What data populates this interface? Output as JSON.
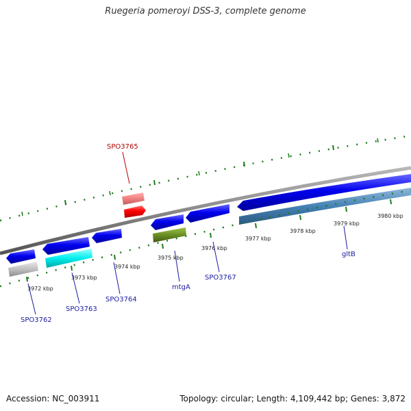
{
  "title": "Ruegeria pomeroyi DSS-3, complete genome",
  "footer": {
    "accession": "Accession: NC_003911",
    "summary": "Topology: circular; Length: 4,109,442 bp; Genes: 3,872"
  },
  "colors": {
    "backbone": "#8a8a8a",
    "tick": "#1a7a1a",
    "label_forward": "#b00000",
    "label_reverse": "#1a1aa0"
  },
  "tick_labels": [
    "3972 kbp",
    "3973 kbp",
    "3974 kbp",
    "3975 kbp",
    "3976 kbp",
    "3977 kbp",
    "3978 kbp",
    "3979 kbp",
    "3980 kbp"
  ],
  "genes": [
    {
      "name": "SPO3762",
      "color": "#0000ee",
      "ring": "cds"
    },
    {
      "name": "SPO3762",
      "color": "#c0c0c0",
      "ring": "category"
    },
    {
      "name": "SPO3763",
      "color": "#0000ee",
      "ring": "cds"
    },
    {
      "name": "SPO3763",
      "color": "#00eeee",
      "ring": "category"
    },
    {
      "name": "SPO3764",
      "color": "#0000ee",
      "ring": "cds"
    },
    {
      "name": "SPO3765",
      "color": "#ff0000",
      "ring": "cds"
    },
    {
      "name": "SPO3765",
      "color": "#f08080",
      "ring": "category"
    },
    {
      "name": "mtgA",
      "color": "#0000ee",
      "ring": "cds"
    },
    {
      "name": "mtgA",
      "color": "#6b8e23",
      "ring": "category"
    },
    {
      "name": "SPO3767",
      "color": "#0000ee",
      "ring": "cds"
    },
    {
      "name": "gltB",
      "color": "#0000ee",
      "ring": "cds"
    },
    {
      "name": "gltB",
      "color": "#4682b4",
      "ring": "category"
    }
  ],
  "gene_labels": [
    {
      "text": "SPO3765",
      "strand": "forward"
    },
    {
      "text": "SPO3762",
      "strand": "reverse"
    },
    {
      "text": "SPO3763",
      "strand": "reverse"
    },
    {
      "text": "SPO3764",
      "strand": "reverse"
    },
    {
      "text": "mtgA",
      "strand": "reverse"
    },
    {
      "text": "SPO3767",
      "strand": "reverse"
    },
    {
      "text": "gltB",
      "strand": "reverse"
    }
  ]
}
